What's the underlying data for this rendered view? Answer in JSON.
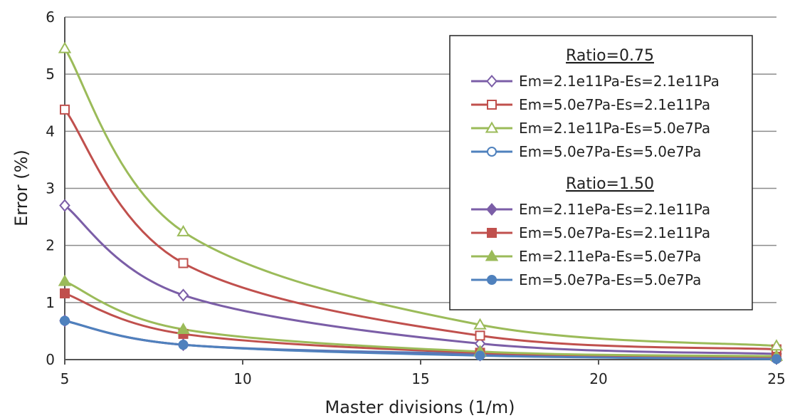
{
  "chart_data": {
    "type": "line",
    "title": "",
    "xlabel": "Master divisions (1/m)",
    "ylabel": "Error (%)",
    "xlim": [
      5,
      25
    ],
    "ylim": [
      0,
      6
    ],
    "x_ticks": [
      "5",
      "10",
      "15",
      "20",
      "25"
    ],
    "y_ticks": [
      "0",
      "1",
      "2",
      "3",
      "4",
      "5",
      "6"
    ],
    "grid": "horizontal",
    "legend_position": "top-right",
    "x": [
      5,
      8.33,
      16.67,
      25
    ],
    "legend_groups": [
      {
        "heading": "Ratio=0.75",
        "series_indices": [
          0,
          1,
          2,
          3
        ]
      },
      {
        "heading": "Ratio=1.50",
        "series_indices": [
          4,
          5,
          6,
          7
        ]
      }
    ],
    "series": [
      {
        "name": "Em=2.1e11Pa-Es=2.1e11Pa",
        "color": "#7b5ea7",
        "marker": "diamond",
        "filled": false,
        "values": [
          2.7,
          1.13,
          0.28,
          0.1
        ]
      },
      {
        "name": "Em=5.0e7Pa-Es=2.1e11Pa",
        "color": "#c0504d",
        "marker": "square",
        "filled": false,
        "values": [
          4.38,
          1.69,
          0.42,
          0.18
        ]
      },
      {
        "name": "Em=2.1e11Pa-Es=5.0e7Pa",
        "color": "#9bbb59",
        "marker": "triangle",
        "filled": false,
        "values": [
          5.45,
          2.24,
          0.61,
          0.24
        ]
      },
      {
        "name": "Em=5.0e7Pa-Es=5.0e7Pa",
        "color": "#4f81bd",
        "marker": "circle",
        "filled": false,
        "values": [
          0.68,
          0.26,
          0.1,
          0.04
        ]
      },
      {
        "name": "Em=2.11ePa-Es=2.1e11Pa",
        "color": "#7b5ea7",
        "marker": "diamond",
        "filled": true,
        "values": [
          0.68,
          0.26,
          0.08,
          0.02
        ]
      },
      {
        "name": "Em=5.0e7Pa-Es=2.1e11Pa",
        "color": "#c0504d",
        "marker": "square",
        "filled": true,
        "values": [
          1.16,
          0.45,
          0.12,
          0.05
        ]
      },
      {
        "name": "Em=2.11ePa-Es=5.0e7Pa",
        "color": "#9bbb59",
        "marker": "triangle",
        "filled": true,
        "values": [
          1.37,
          0.53,
          0.14,
          0.06
        ]
      },
      {
        "name": "Em=5.0e7Pa-Es=5.0e7Pa",
        "color": "#4f81bd",
        "marker": "circle",
        "filled": true,
        "values": [
          0.68,
          0.26,
          0.07,
          0.01
        ]
      }
    ]
  }
}
